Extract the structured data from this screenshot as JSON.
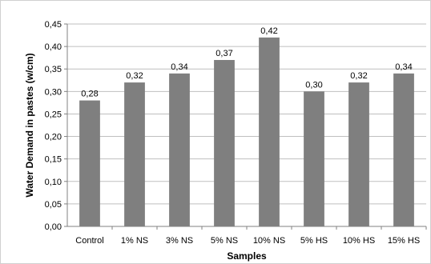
{
  "chart_data": {
    "type": "bar",
    "categories": [
      "Control",
      "1% NS",
      "3% NS",
      "5% NS",
      "10% NS",
      "5% HS",
      "10% HS",
      "15% HS"
    ],
    "values": [
      0.28,
      0.32,
      0.34,
      0.37,
      0.42,
      0.3,
      0.32,
      0.34
    ],
    "data_labels": [
      "0,28",
      "0,32",
      "0,34",
      "0,37",
      "0,42",
      "0,30",
      "0,32",
      "0,34"
    ],
    "xlabel": "Samples",
    "ylabel": "Water Demand in pastes (w/cm)",
    "ylim": [
      0,
      0.45
    ],
    "yticks": [
      0,
      0.05,
      0.1,
      0.15,
      0.2,
      0.25,
      0.3,
      0.35,
      0.4,
      0.45
    ],
    "ytick_labels": [
      "0,00",
      "0,05",
      "0,10",
      "0,15",
      "0,20",
      "0,25",
      "0,30",
      "0,35",
      "0,40",
      "0,45"
    ],
    "bar_color": "#7f7f7f",
    "grid_color": "#bfbfbf",
    "grid": true,
    "legend": "none"
  }
}
